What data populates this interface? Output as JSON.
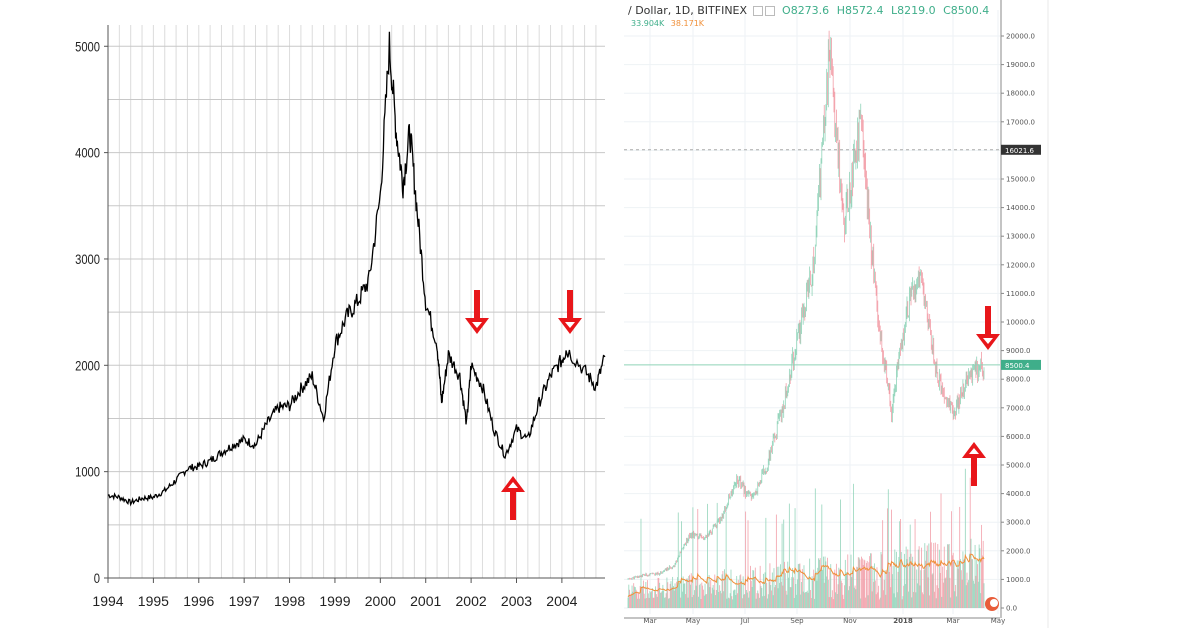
{
  "chart_data": [
    {
      "type": "line",
      "title": "",
      "xlabel": "",
      "ylabel": "",
      "x_ticks": [
        "1994",
        "1995",
        "1996",
        "1997",
        "1998",
        "1999",
        "2000",
        "2001",
        "2002",
        "2003",
        "2004"
      ],
      "y_ticks": [
        0,
        1000,
        2000,
        3000,
        4000,
        5000
      ],
      "ylim": [
        0,
        5200
      ],
      "xlim": [
        1994.0,
        2004.95
      ],
      "grid": true,
      "series": [
        {
          "name": "Index",
          "color": "#000000",
          "points": [
            [
              1994.0,
              780
            ],
            [
              1994.25,
              760
            ],
            [
              1994.5,
              710
            ],
            [
              1994.75,
              750
            ],
            [
              1995.0,
              760
            ],
            [
              1995.25,
              820
            ],
            [
              1995.5,
              920
            ],
            [
              1995.75,
              1030
            ],
            [
              1996.0,
              1050
            ],
            [
              1996.25,
              1100
            ],
            [
              1996.5,
              1180
            ],
            [
              1996.75,
              1250
            ],
            [
              1997.0,
              1300
            ],
            [
              1997.25,
              1250
            ],
            [
              1997.5,
              1450
            ],
            [
              1997.75,
              1600
            ],
            [
              1998.0,
              1620
            ],
            [
              1998.25,
              1780
            ],
            [
              1998.5,
              1900
            ],
            [
              1998.75,
              1500
            ],
            [
              1999.0,
              2200
            ],
            [
              1999.25,
              2450
            ],
            [
              1999.5,
              2600
            ],
            [
              1999.75,
              2800
            ],
            [
              2000.0,
              3600
            ],
            [
              2000.2,
              5000
            ],
            [
              2000.35,
              4200
            ],
            [
              2000.5,
              3700
            ],
            [
              2000.65,
              4200
            ],
            [
              2000.8,
              3500
            ],
            [
              2001.0,
              2600
            ],
            [
              2001.25,
              2200
            ],
            [
              2001.35,
              1650
            ],
            [
              2001.5,
              2100
            ],
            [
              2001.75,
              1900
            ],
            [
              2001.9,
              1450
            ],
            [
              2002.0,
              2000
            ],
            [
              2002.25,
              1800
            ],
            [
              2002.5,
              1400
            ],
            [
              2002.75,
              1150
            ],
            [
              2003.0,
              1400
            ],
            [
              2003.25,
              1300
            ],
            [
              2003.5,
              1650
            ],
            [
              2003.75,
              1900
            ],
            [
              2004.0,
              2050
            ],
            [
              2004.1,
              2150
            ],
            [
              2004.5,
              1950
            ],
            [
              2004.75,
              1800
            ],
            [
              2004.95,
              2080
            ]
          ]
        }
      ],
      "annotations": [
        {
          "type": "arrow-down",
          "color": "#e8161a",
          "x": 2002.0,
          "label": ""
        },
        {
          "type": "arrow-down",
          "color": "#e8161a",
          "x": 2004.0,
          "label": ""
        },
        {
          "type": "arrow-up",
          "color": "#e8161a",
          "x": 2002.75,
          "label": ""
        }
      ]
    },
    {
      "type": "candlestick",
      "title": "/ Dollar, 1D, BITFINEX",
      "xlabel": "",
      "ylabel": "",
      "x_ticks": [
        "Mar",
        "May",
        "Jul",
        "Sep",
        "Nov",
        "2018",
        "Mar",
        "May"
      ],
      "y_ticks": [
        0.0,
        1000.0,
        2000.0,
        3000.0,
        4000.0,
        5000.0,
        6000.0,
        7000.0,
        8000.0,
        9000.0,
        10000.0,
        11000.0,
        12000.0,
        13000.0,
        14000.0,
        15000.0,
        16000.0,
        17000.0,
        18000.0,
        19000.0,
        20000.0
      ],
      "ylim": [
        0,
        20600
      ],
      "grid": true,
      "ohlc": {
        "open": 8273.6,
        "high": 8572.4,
        "low": 8219.0,
        "close": 8500.4
      },
      "volume": {
        "value": "33.904K",
        "ma": "38.171K"
      },
      "price_line_last": 8500.4,
      "price_line_dashed": 16021.6,
      "series": [
        {
          "name": "Price (close)",
          "color": "#3fae8a",
          "points": [
            [
              "Feb",
              1000
            ],
            [
              "Mar",
              1150
            ],
            [
              "Apr",
              1200
            ],
            [
              "May",
              1500
            ],
            [
              "Jun",
              2600
            ],
            [
              "Jul",
              2400
            ],
            [
              "Aug",
              3100
            ],
            [
              "Sep",
              4500
            ],
            [
              "Sep-end",
              3800
            ],
            [
              "Oct",
              5000
            ],
            [
              "Nov",
              7000
            ],
            [
              "Nov-end",
              9500
            ],
            [
              "Dec-early",
              12000
            ],
            [
              "Dec-mid",
              19500
            ],
            [
              "Dec-end",
              13500
            ],
            [
              "Jan-early",
              17000
            ],
            [
              "Jan-mid",
              11000
            ],
            [
              "Feb-early",
              6800
            ],
            [
              "Feb-end",
              10500
            ],
            [
              "Mar-early",
              11500
            ],
            [
              "Mar-mid",
              8000
            ],
            [
              "Apr-early",
              6800
            ],
            [
              "Apr-mid",
              8000
            ],
            [
              "Apr-end",
              8500
            ]
          ]
        },
        {
          "name": "Volume",
          "colors": {
            "up": "#8fd3b8",
            "down": "#f29ca6"
          }
        },
        {
          "name": "Volume MA",
          "color": "#f0903a"
        }
      ],
      "annotations": [
        {
          "type": "arrow-down",
          "color": "#e8161a",
          "near": "Apr-end",
          "label": ""
        },
        {
          "type": "arrow-up",
          "color": "#e8161a",
          "near": "Apr-early",
          "label": ""
        }
      ]
    }
  ],
  "right": {
    "symbol": "/ Dollar, 1D, BITFINEX",
    "o_label": "O8273.6",
    "h_label": "H8572.4",
    "l_label": "L8219.0",
    "c_label": "C8500.4",
    "vol": "33.904K",
    "vol_ma": "38.171K",
    "last_price_tag": "8500.4",
    "dashed_price_tag": "16021.6"
  }
}
